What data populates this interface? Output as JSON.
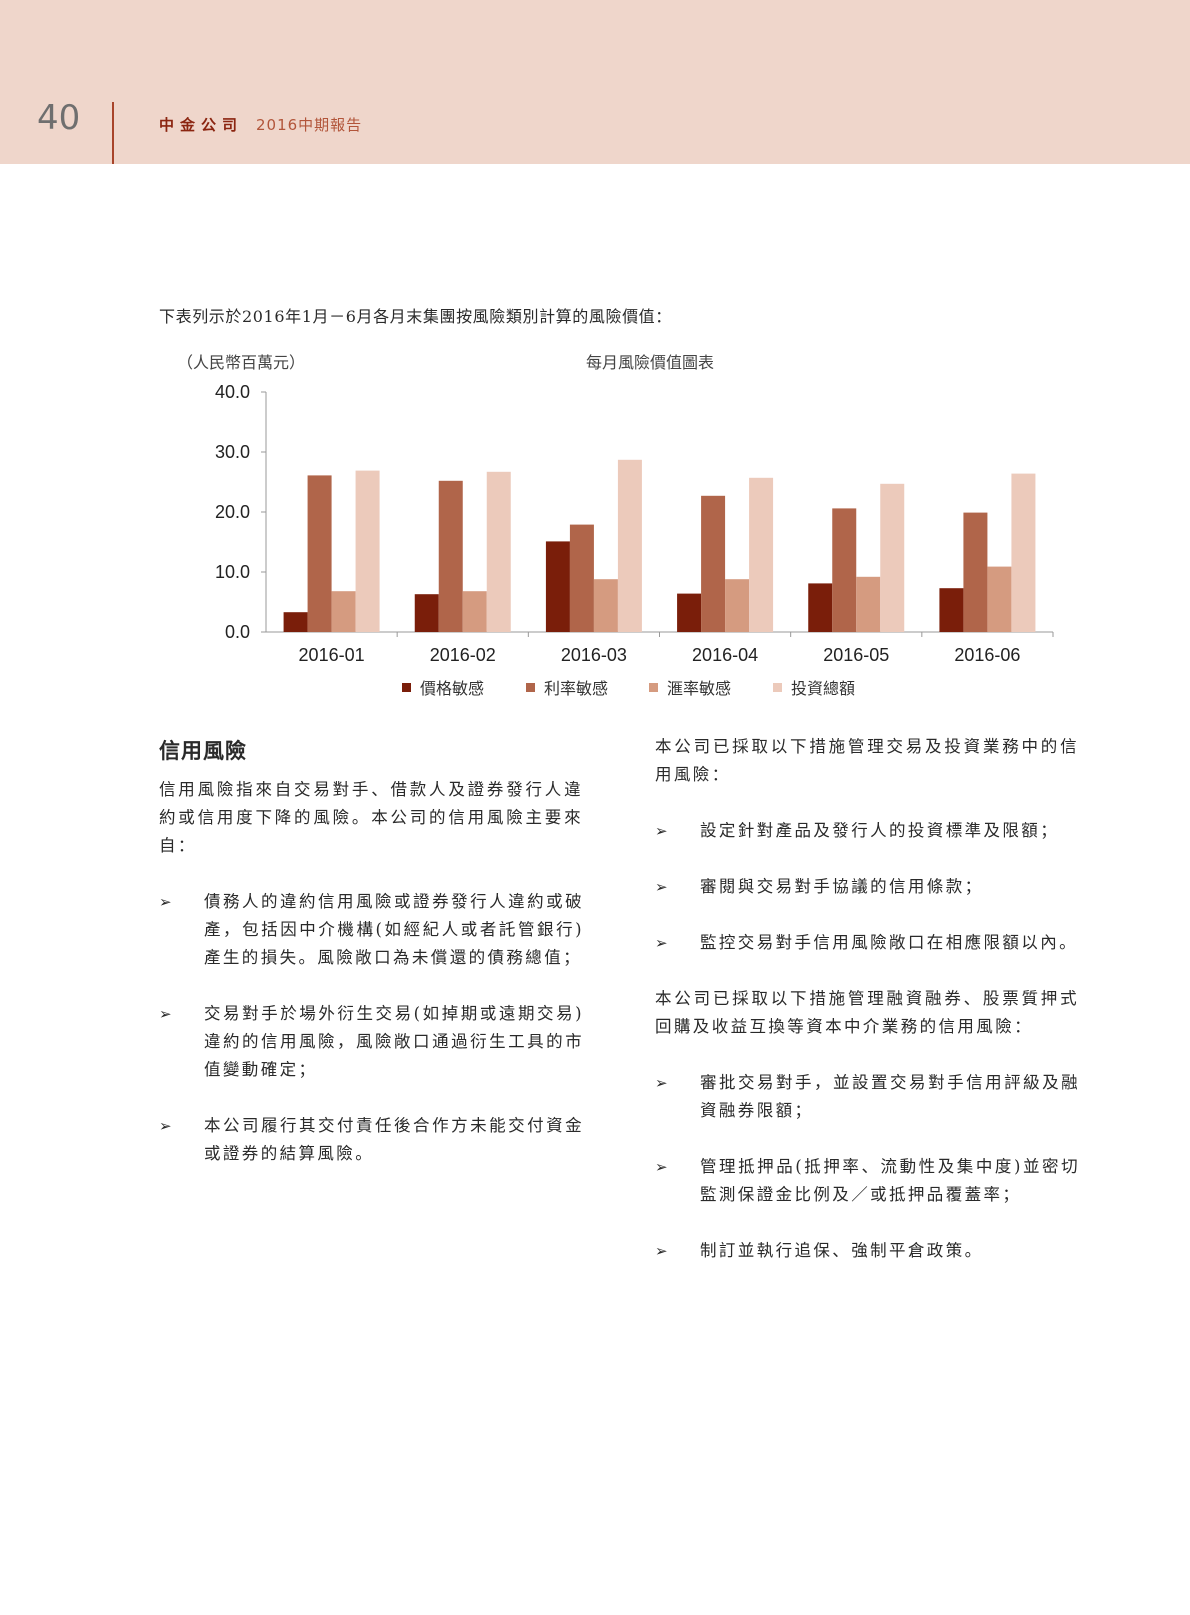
{
  "header": {
    "page_number": "40",
    "brand": "中金公司",
    "report": "2016中期報告"
  },
  "intro": "下表列示於2016年1月－6月各月末集團按風險類別計算的風險價值：",
  "chart_data": {
    "type": "bar",
    "title": "每月風險價值圖表",
    "ylabel": "（人民幣百萬元）",
    "xlabel": "",
    "ylim": [
      0,
      40
    ],
    "yticks": [
      "0.0",
      "10.0",
      "20.0",
      "30.0",
      "40.0"
    ],
    "categories": [
      "2016-01",
      "2016-02",
      "2016-03",
      "2016-04",
      "2016-05",
      "2016-06"
    ],
    "legend_position": "bottom",
    "grid": false,
    "series": [
      {
        "name": "價格敏感",
        "color": "#7a1e0a",
        "values": [
          3.3,
          6.3,
          15.1,
          6.4,
          8.1,
          7.3
        ]
      },
      {
        "name": "利率敏感",
        "color": "#b0654a",
        "values": [
          26.1,
          25.2,
          17.9,
          22.7,
          20.6,
          19.9
        ]
      },
      {
        "name": "滙率敏感",
        "color": "#d59b80",
        "values": [
          6.8,
          6.8,
          8.8,
          8.8,
          9.2,
          10.9
        ]
      },
      {
        "name": "投資總額",
        "color": "#eccabb",
        "values": [
          26.9,
          26.7,
          28.7,
          25.7,
          24.7,
          26.4
        ]
      }
    ]
  },
  "credit": {
    "heading": "信用風險",
    "para": "信用風險指來自交易對手、借款人及證券發行人違約或信用度下降的風險。本公司的信用風險主要來自：",
    "bullet_symbol": "➢",
    "bullets": [
      "債務人的違約信用風險或證券發行人違約或破產，包括因中介機構(如經紀人或者託管銀行)產生的損失。風險敞口為未償還的債務總值；",
      "交易對手於場外衍生交易(如掉期或遠期交易)違約的信用風險，風險敞口通過衍生工具的市值變動確定；",
      "本公司履行其交付責任後合作方未能交付資金或證券的結算風險。"
    ]
  },
  "measures": {
    "para1": "本公司已採取以下措施管理交易及投資業務中的信用風險：",
    "bullets1": [
      "設定針對產品及發行人的投資標準及限額；",
      "審閱與交易對手協議的信用條款；",
      "監控交易對手信用風險敞口在相應限額以內。"
    ],
    "para2": "本公司已採取以下措施管理融資融券、股票質押式回購及收益互換等資本中介業務的信用風險：",
    "bullets2": [
      "審批交易對手，並設置交易對手信用評級及融資融券限額；",
      "管理抵押品(抵押率、流動性及集中度)並密切監測保證金比例及／或抵押品覆蓋率；",
      "制訂並執行追保、強制平倉政策。"
    ]
  }
}
